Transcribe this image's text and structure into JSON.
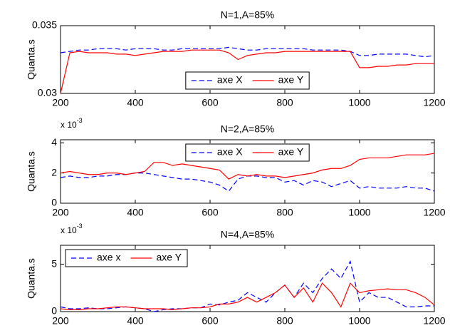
{
  "chart_data": [
    {
      "type": "line",
      "title": "N=1,A=85%",
      "ylabel": "Quanta.s",
      "x": [
        200,
        225,
        250,
        275,
        300,
        325,
        350,
        375,
        400,
        425,
        450,
        475,
        500,
        525,
        550,
        575,
        600,
        625,
        650,
        675,
        700,
        725,
        750,
        775,
        800,
        825,
        850,
        875,
        900,
        925,
        950,
        975,
        1000,
        1025,
        1050,
        1075,
        1100,
        1125,
        1150,
        1175,
        1200
      ],
      "series": [
        {
          "name": "axe X",
          "color": "#0000ff",
          "dash": true,
          "values": [
            0.033,
            0.0331,
            0.0332,
            0.0332,
            0.0333,
            0.0333,
            0.0333,
            0.0332,
            0.0333,
            0.0333,
            0.0333,
            0.0332,
            0.0332,
            0.0333,
            0.0333,
            0.0333,
            0.0333,
            0.0333,
            0.0334,
            0.0333,
            0.0332,
            0.0332,
            0.0333,
            0.0333,
            0.0333,
            0.0333,
            0.0333,
            0.0332,
            0.0332,
            0.0332,
            0.0332,
            0.0331,
            0.0328,
            0.0328,
            0.0329,
            0.0329,
            0.0329,
            0.0329,
            0.0328,
            0.0327,
            0.0328
          ]
        },
        {
          "name": "axe Y",
          "color": "#ff0000",
          "dash": false,
          "values": [
            0.03,
            0.033,
            0.0331,
            0.033,
            0.033,
            0.033,
            0.0329,
            0.0329,
            0.0328,
            0.0329,
            0.033,
            0.0331,
            0.0331,
            0.0331,
            0.0332,
            0.0332,
            0.0332,
            0.0332,
            0.033,
            0.0325,
            0.0328,
            0.0329,
            0.033,
            0.033,
            0.0331,
            0.0331,
            0.0331,
            0.0331,
            0.0331,
            0.0331,
            0.0331,
            0.0331,
            0.0319,
            0.0319,
            0.032,
            0.032,
            0.0321,
            0.0321,
            0.0322,
            0.0322,
            0.0322
          ]
        }
      ],
      "xlim": [
        200,
        1200
      ],
      "xticks": [
        200,
        400,
        600,
        800,
        1000,
        1200
      ],
      "ylim": [
        0.03,
        0.035
      ],
      "yticks": [
        0.03,
        0.035
      ],
      "legend": "lower center"
    },
    {
      "type": "line",
      "title": "N=2,A=85%",
      "ylabel": "Quanta.s",
      "multiplier": "x 10",
      "multiplier_exponent": "-3",
      "x": [
        200,
        225,
        250,
        275,
        300,
        325,
        350,
        375,
        400,
        425,
        450,
        475,
        500,
        525,
        550,
        575,
        600,
        625,
        650,
        675,
        700,
        725,
        750,
        775,
        800,
        825,
        850,
        875,
        900,
        925,
        950,
        975,
        1000,
        1025,
        1050,
        1075,
        1100,
        1125,
        1150,
        1175,
        1200
      ],
      "series": [
        {
          "name": "axe X",
          "color": "#0000ff",
          "dash": true,
          "values": [
            1.7,
            1.8,
            1.7,
            1.7,
            1.8,
            1.8,
            1.9,
            1.9,
            2.0,
            2.0,
            1.9,
            1.8,
            1.7,
            1.6,
            1.6,
            1.5,
            1.4,
            1.2,
            0.8,
            1.6,
            1.8,
            1.8,
            1.7,
            1.7,
            1.4,
            1.5,
            1.2,
            1.5,
            1.4,
            1.1,
            1.3,
            1.5,
            1.0,
            1.1,
            1.0,
            1.0,
            1.0,
            1.1,
            1.0,
            1.0,
            0.8
          ]
        },
        {
          "name": "axe Y",
          "color": "#ff0000",
          "dash": false,
          "values": [
            2.0,
            2.1,
            2.0,
            1.9,
            1.9,
            2.0,
            2.0,
            1.9,
            2.0,
            2.1,
            2.7,
            2.7,
            2.5,
            2.6,
            2.5,
            2.4,
            2.3,
            2.2,
            1.6,
            1.9,
            1.8,
            1.9,
            1.8,
            1.8,
            1.7,
            1.8,
            1.9,
            2.0,
            2.2,
            2.3,
            2.3,
            2.5,
            2.9,
            3.0,
            3.0,
            3.0,
            3.1,
            3.2,
            3.2,
            3.2,
            3.3
          ]
        }
      ],
      "xlim": [
        200,
        1200
      ],
      "xticks": [
        200,
        400,
        600,
        800,
        1000,
        1200
      ],
      "ylim": [
        0,
        4.2
      ],
      "yticks": [
        0,
        2,
        4
      ],
      "legend": "upper center"
    },
    {
      "type": "line",
      "title": "N=4,A=85%",
      "ylabel": "Quanta.s",
      "multiplier": "x 10",
      "multiplier_exponent": "-3",
      "x": [
        200,
        225,
        250,
        275,
        300,
        325,
        350,
        375,
        400,
        425,
        450,
        475,
        500,
        525,
        550,
        575,
        600,
        625,
        650,
        675,
        700,
        725,
        750,
        775,
        800,
        825,
        850,
        875,
        900,
        925,
        950,
        975,
        1000,
        1025,
        1050,
        1075,
        1100,
        1125,
        1150,
        1175,
        1200
      ],
      "series": [
        {
          "name": "axe x",
          "color": "#0000ff",
          "dash": true,
          "values": [
            0.5,
            0.3,
            0.3,
            0.4,
            0.3,
            0.3,
            0.4,
            0.5,
            0.4,
            0.3,
            0.0,
            0.2,
            0.3,
            0.3,
            0.4,
            0.4,
            0.8,
            0.7,
            1.0,
            1.2,
            2.0,
            1.5,
            1.0,
            2.0,
            2.8,
            1.5,
            3.0,
            2.0,
            3.5,
            4.5,
            3.5,
            5.3,
            1.0,
            2.0,
            1.5,
            1.5,
            1.0,
            0.5,
            0.5,
            0.6,
            0.6
          ]
        },
        {
          "name": "axe Y",
          "color": "#ff0000",
          "dash": false,
          "values": [
            0.3,
            0.2,
            0.2,
            0.3,
            0.3,
            0.4,
            0.5,
            0.5,
            0.4,
            0.3,
            0.3,
            0.3,
            0.2,
            0.3,
            0.4,
            0.4,
            0.5,
            0.8,
            0.8,
            1.0,
            1.5,
            1.0,
            1.5,
            2.0,
            2.8,
            1.5,
            2.5,
            1.0,
            3.0,
            2.0,
            0.5,
            3.0,
            2.0,
            2.2,
            2.3,
            2.4,
            2.3,
            2.3,
            2.0,
            1.5,
            0.7
          ]
        }
      ],
      "xlim": [
        200,
        1200
      ],
      "xticks": [
        200,
        400,
        600,
        800,
        1000,
        1200
      ],
      "ylim": [
        0,
        7
      ],
      "yticks": [
        0,
        5
      ],
      "legend": "upper left"
    }
  ]
}
